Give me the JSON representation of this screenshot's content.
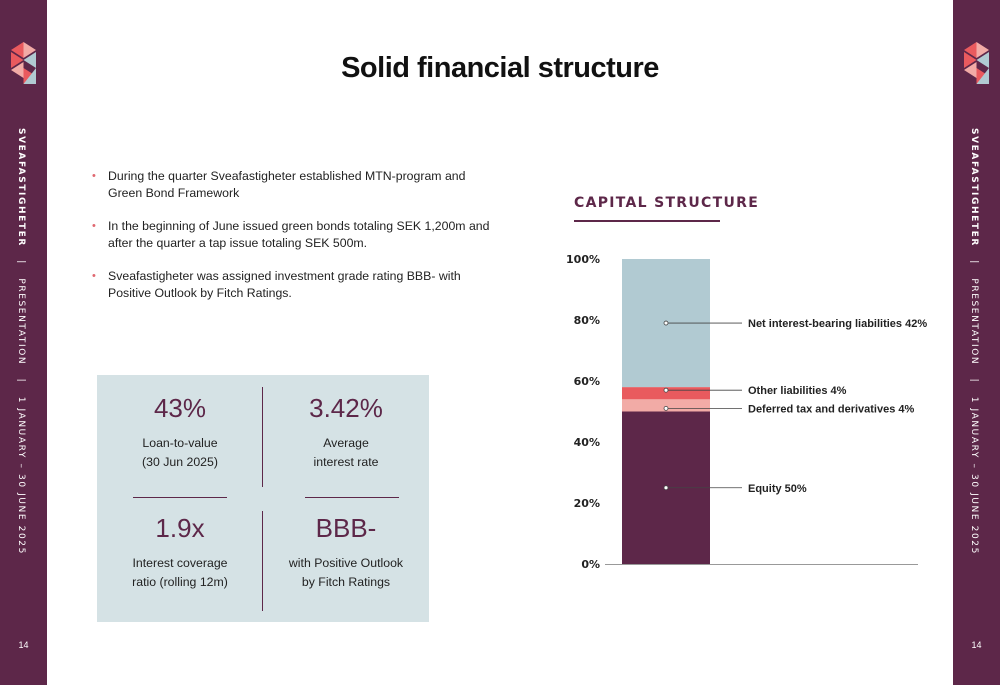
{
  "sidebar": {
    "brand": "SVEAFASTIGHETER",
    "sep1": "|",
    "doc_type": "PRESENTATION",
    "sep2": "|",
    "period": "1 JANUARY – 30 JUNE 2025",
    "page_number": "14",
    "logo_icon": "sveafastigheter-logo-icon",
    "colors": {
      "brand_purple": "#5d2749",
      "accent_red": "#e95a5e",
      "light_pink": "#f2aba6",
      "slate_blue": "#b1cad2"
    }
  },
  "page": {
    "title": "Solid financial structure"
  },
  "bullets": [
    "During the quarter Sveafastigheter established MTN-program and Green Bond Framework",
    "In the beginning of June issued green bonds totaling SEK 1,200m and after the quarter a tap issue totaling SEK 500m.",
    "Sveafastigheter was assigned investment grade rating BBB- with Positive Outlook by Fitch Ratings."
  ],
  "kpis": {
    "ltv": {
      "value": "43%",
      "label1": "Loan-to-value",
      "label2": "(30 Jun 2025)"
    },
    "interest": {
      "value": "3.42%",
      "label1": "Average",
      "label2": "interest rate"
    },
    "icr": {
      "value": "1.9x",
      "label1": "Interest coverage",
      "label2": "ratio (rolling 12m)"
    },
    "rating": {
      "value": "BBB-",
      "label1": "with Positive Outlook",
      "label2": "by Fitch Ratings"
    }
  },
  "capital_structure": {
    "title": "CAPITAL STRUCTURE"
  },
  "chart_data": {
    "type": "bar",
    "stacked": true,
    "title": "CAPITAL STRUCTURE",
    "ylim": [
      0,
      100
    ],
    "yticks": [
      "0%",
      "20%",
      "40%",
      "60%",
      "80%",
      "100%"
    ],
    "grid": false,
    "series": [
      {
        "name": "Equity 50%",
        "value": 50,
        "color": "#5d2749"
      },
      {
        "name": "Deferred tax and derivatives 4%",
        "value": 4,
        "color": "#f2aba6"
      },
      {
        "name": "Other liabilities 4%",
        "value": 4,
        "color": "#e95a5e"
      },
      {
        "name": "Net interest-bearing liabilities 42%",
        "value": 42,
        "color": "#b1cad2"
      }
    ]
  }
}
